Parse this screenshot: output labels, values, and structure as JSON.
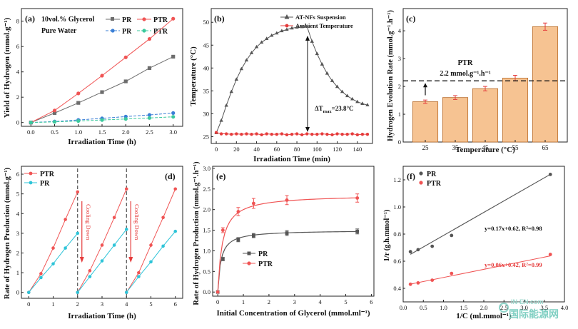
{
  "chart_data": [
    {
      "panel_label": "(a)",
      "type": "line",
      "xlabel": "Irradiation Time (h)",
      "ylabel": "Yield of Hydrogen (mmol.g⁻¹)",
      "xlim": [
        -0.2,
        3.2
      ],
      "ylim": [
        -0.3,
        9
      ],
      "xticks": [
        "0.0",
        "0.5",
        "1.0",
        "1.5",
        "2.0",
        "2.5",
        "3.0"
      ],
      "yticks": [
        "0",
        "2",
        "4",
        "6",
        "8"
      ],
      "legend_title_1": "10vol.% Glycerol",
      "legend_title_2": "Pure Water",
      "legend_placement": "top-left",
      "series": [
        {
          "name": "PR",
          "group": "glycerol",
          "color": "#6d6d6d",
          "marker": "square",
          "dash": "solid",
          "x": [
            0,
            0.5,
            1.0,
            1.5,
            2.0,
            2.5,
            3.0
          ],
          "y": [
            0,
            0.75,
            1.55,
            2.4,
            3.25,
            4.3,
            5.2
          ]
        },
        {
          "name": "PTR",
          "group": "glycerol",
          "color": "#f05454",
          "marker": "circle",
          "dash": "solid",
          "x": [
            0,
            0.5,
            1.0,
            1.5,
            2.0,
            2.5,
            3.0
          ],
          "y": [
            0,
            0.95,
            2.3,
            3.7,
            5.15,
            6.6,
            8.2
          ]
        },
        {
          "name": "PR",
          "group": "water",
          "color": "#3a7fd6",
          "marker": "circle",
          "dash": "dashed",
          "x": [
            0,
            0.5,
            1.0,
            1.5,
            2.0,
            2.5,
            3.0
          ],
          "y": [
            0,
            0.08,
            0.2,
            0.33,
            0.47,
            0.6,
            0.75
          ]
        },
        {
          "name": "PTR",
          "group": "water",
          "color": "#3cc99d",
          "marker": "circle",
          "dash": "dashed",
          "x": [
            0,
            0.5,
            1.0,
            1.5,
            2.0,
            2.5,
            3.0
          ],
          "y": [
            0,
            0.05,
            0.12,
            0.2,
            0.28,
            0.36,
            0.45
          ]
        }
      ]
    },
    {
      "panel_label": "(b)",
      "type": "line",
      "xlabel": "Irradiation Time (min)",
      "ylabel": "Temperature (°C)",
      "xlim": [
        -5,
        155
      ],
      "ylim": [
        23.5,
        53
      ],
      "xticks": [
        "0",
        "20",
        "40",
        "60",
        "80",
        "100",
        "120",
        "140"
      ],
      "yticks": [
        "25",
        "30",
        "35",
        "40",
        "45",
        "50"
      ],
      "legend_placement": "top-right",
      "annotation": "ΔT",
      "annotation_sub": "max",
      "annotation_value": "=23.8°C",
      "series": [
        {
          "name": "AT-NFs Suspension",
          "color": "#555555",
          "marker": "triangle",
          "x": [
            0,
            5,
            10,
            15,
            20,
            25,
            30,
            35,
            40,
            45,
            50,
            55,
            60,
            65,
            70,
            75,
            80,
            85,
            90,
            95,
            100,
            105,
            110,
            115,
            120,
            125,
            130,
            135,
            140,
            145,
            150
          ],
          "y": [
            25.8,
            28.5,
            31.8,
            34.8,
            37.5,
            39.8,
            41.7,
            43.3,
            44.6,
            45.6,
            46.4,
            47.1,
            47.6,
            48.1,
            48.4,
            48.7,
            48.9,
            49.0,
            49.1,
            45.8,
            43.1,
            40.8,
            38.8,
            37.2,
            35.9,
            34.8,
            33.9,
            33.2,
            32.6,
            32.2,
            31.9
          ]
        },
        {
          "name": "Ambient Temperature",
          "color": "#e53b3b",
          "marker": "circle",
          "x": [
            0,
            5,
            10,
            15,
            20,
            25,
            30,
            35,
            40,
            45,
            50,
            55,
            60,
            65,
            70,
            75,
            80,
            85,
            90,
            95,
            100,
            105,
            110,
            115,
            120,
            125,
            130,
            135,
            140,
            145,
            150
          ],
          "y": [
            25.9,
            25.6,
            25.6,
            25.5,
            25.6,
            25.5,
            25.6,
            25.5,
            25.6,
            25.4,
            25.6,
            25.5,
            25.5,
            25.6,
            25.4,
            25.5,
            25.6,
            25.4,
            25.6,
            25.5,
            25.5,
            25.6,
            25.5,
            25.4,
            25.6,
            25.5,
            25.5,
            25.6,
            25.4,
            25.5,
            25.5
          ]
        }
      ]
    },
    {
      "panel_label": "(c)",
      "type": "bar",
      "xlabel": "Temperature (°C)",
      "ylabel": "Hydrogen Evolution Rate (mmol.g⁻¹.h⁻¹)",
      "categories": [
        "25",
        "35",
        "45",
        "55",
        "65"
      ],
      "values": [
        1.45,
        1.6,
        1.92,
        2.3,
        4.15
      ],
      "errors": [
        0.06,
        0.07,
        0.08,
        0.1,
        0.13
      ],
      "ylim": [
        0,
        4.8
      ],
      "yticks": [
        "0",
        "1",
        "2",
        "3",
        "4"
      ],
      "reference_value": 2.2,
      "reference_label": "PTR",
      "reference_value_label": "2.2 mmol.g⁻¹.h⁻¹",
      "bar_color": "#f6c392",
      "bar_edge": "#b86b2a"
    },
    {
      "panel_label": "(d)",
      "type": "line",
      "xlabel": "Irradiation Time (h)",
      "ylabel": "Rate of Hydrogen Production (mmol.g⁻¹)",
      "xlim": [
        -0.3,
        6.3
      ],
      "ylim": [
        -0.3,
        6.4
      ],
      "xticks": [
        "0",
        "1",
        "2",
        "3",
        "4",
        "5",
        "6"
      ],
      "yticks": [
        "0",
        "1",
        "2",
        "3",
        "4",
        "5",
        "6"
      ],
      "legend_placement": "top-left",
      "cooling_label": "Cooling Down",
      "cooling_x": [
        2,
        4
      ],
      "series": [
        {
          "name": "PTR",
          "color": "#f05454",
          "cycles": [
            {
              "x": [
                0,
                0.5,
                1,
                1.5,
                2
              ],
              "y": [
                0,
                0.95,
                2.25,
                3.7,
                5.1
              ]
            },
            {
              "x": [
                2,
                2.5,
                3,
                3.5,
                4
              ],
              "y": [
                0,
                1.1,
                2.4,
                3.8,
                5.25
              ]
            },
            {
              "x": [
                4,
                4.5,
                5,
                5.5,
                6
              ],
              "y": [
                0,
                1.0,
                2.4,
                3.8,
                5.25
              ]
            }
          ]
        },
        {
          "name": "PR",
          "color": "#2ec4d8",
          "cycles": [
            {
              "x": [
                0,
                0.5,
                1,
                1.5,
                2
              ],
              "y": [
                0,
                0.75,
                1.45,
                2.25,
                3.0
              ]
            },
            {
              "x": [
                2,
                2.5,
                3,
                3.5,
                4
              ],
              "y": [
                0,
                0.8,
                1.6,
                2.4,
                3.2
              ]
            },
            {
              "x": [
                4,
                4.5,
                5,
                5.5,
                6
              ],
              "y": [
                0,
                0.8,
                1.55,
                2.35,
                3.1
              ]
            }
          ]
        }
      ]
    },
    {
      "panel_label": "(e)",
      "type": "scatter",
      "xlabel": "Initial Concentration of Glycerol (mmol.ml⁻¹)",
      "ylabel": "Rate of Hydrogen Production (mmol.g⁻¹.h⁻¹)",
      "xlim": [
        -0.2,
        6.1
      ],
      "ylim": [
        -0.1,
        3.05
      ],
      "xticks": [
        "0",
        "1",
        "2",
        "3",
        "4",
        "5",
        "6"
      ],
      "yticks": [
        "0.0",
        "0.5",
        "1.0",
        "1.5",
        "2.0",
        "2.5",
        "3.0"
      ],
      "legend_placement": "bottom-right",
      "series": [
        {
          "name": "PR",
          "color": "#555555",
          "x": [
            0,
            0.2,
            0.8,
            1.4,
            2.7,
            5.45
          ],
          "y": [
            0,
            0.8,
            1.27,
            1.37,
            1.43,
            1.47
          ],
          "err": [
            0,
            0.04,
            0.05,
            0.05,
            0.06,
            0.06
          ],
          "vmax": 1.5,
          "k": 0.12
        },
        {
          "name": "PTR",
          "color": "#f05454",
          "x": [
            0,
            0.2,
            0.8,
            1.4,
            2.7,
            5.45
          ],
          "y": [
            0,
            1.5,
            1.95,
            2.15,
            2.23,
            2.28
          ],
          "err": [
            0,
            0.06,
            0.1,
            0.12,
            0.11,
            0.1
          ],
          "vmax": 2.36,
          "k": 0.18
        }
      ]
    },
    {
      "panel_label": "(f)",
      "type": "scatter",
      "xlabel": "1/C (ml.mmol⁻¹)",
      "ylabel": "1/r (g.h.mmol⁻¹)",
      "xlim": [
        0,
        4.0
      ],
      "ylim": [
        0.3,
        1.3
      ],
      "xticks": [
        "0.0",
        "0.5",
        "1.0",
        "1.5",
        "2.0",
        "2.5",
        "3.0",
        "3.5",
        "4.0"
      ],
      "yticks": [
        "0.4",
        "0.6",
        "0.8",
        "1.0",
        "1.2"
      ],
      "legend_placement": "top-left",
      "series": [
        {
          "name": "PR",
          "color": "#555555",
          "line_color": "#555555",
          "x": [
            0.18,
            0.37,
            0.72,
            1.2,
            3.65
          ],
          "y": [
            0.67,
            0.685,
            0.71,
            0.79,
            1.24
          ],
          "fit": "y=0.17x+0.62, R²=0.98",
          "slope": 0.17,
          "intercept": 0.62
        },
        {
          "name": "PTR",
          "color": "#f05454",
          "line_color": "#f05454",
          "x": [
            0.18,
            0.37,
            0.72,
            1.2,
            3.65
          ],
          "y": [
            0.43,
            0.44,
            0.46,
            0.51,
            0.65
          ],
          "fit": "y=0.06x+0.42, R²=0.99",
          "slope": 0.06,
          "intercept": 0.42
        }
      ]
    }
  ],
  "watermark": {
    "line1": "IN-EN.com",
    "line2": "国际能源网"
  }
}
